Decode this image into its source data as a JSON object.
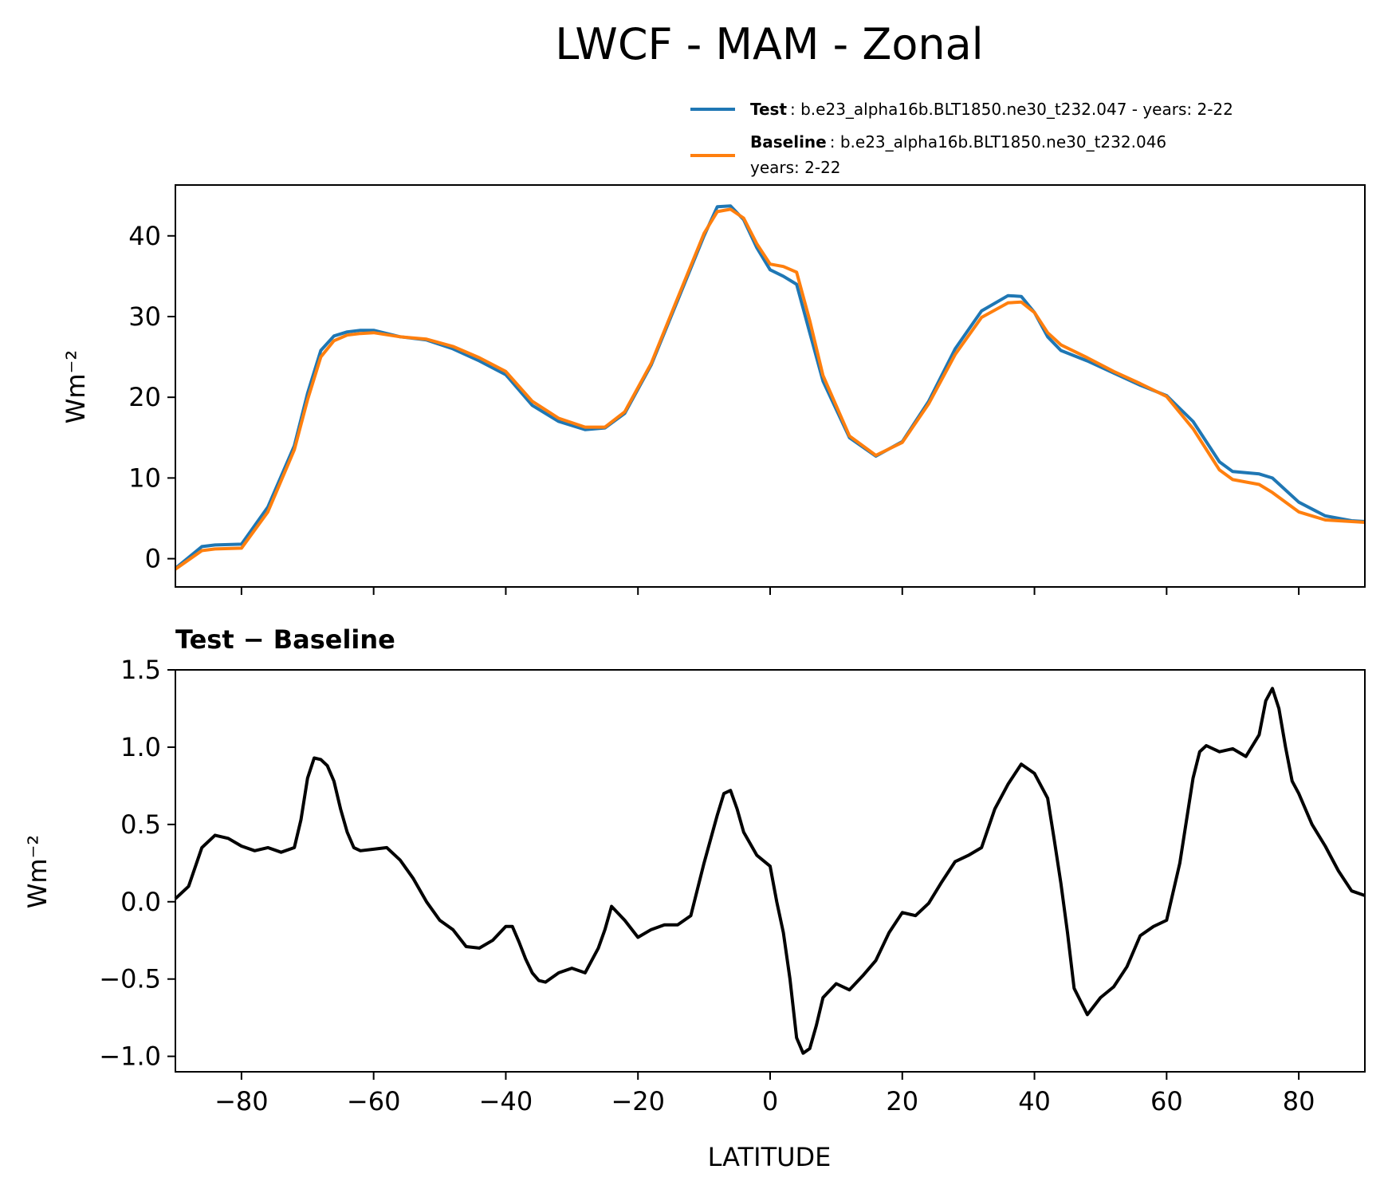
{
  "chart_data": [
    {
      "type": "line",
      "title": "LWCF - MAM - Zonal",
      "ylabel": "Wm⁻²",
      "xlabel": "",
      "xlim": [
        -90,
        90
      ],
      "ylim": [
        -3.5,
        46.3
      ],
      "yticks": [
        0,
        10,
        20,
        30,
        40
      ],
      "xticks": [
        -80,
        -60,
        -40,
        -20,
        0,
        20,
        40,
        60,
        80
      ],
      "legend": {
        "placement": "top-right",
        "entries": [
          {
            "name": "Test",
            "desc": ": b.e23_alpha16b.BLT1850.ne30_t232.047 - years: 2-22",
            "color": "#1f77b4"
          },
          {
            "name": "Baseline",
            "desc": ": b.e23_alpha16b.BLT1850.ne30_t232.046",
            "desc2": "years: 2-22",
            "color": "#ff7f0e"
          }
        ]
      },
      "series": [
        {
          "name": "Test",
          "color": "#1f77b4",
          "x": [
            -90,
            -86,
            -84,
            -80,
            -76,
            -72,
            -70,
            -68,
            -66,
            -64,
            -62,
            -60,
            -56,
            -52,
            -48,
            -44,
            -40,
            -36,
            -32,
            -28,
            -25,
            -22,
            -18,
            -14,
            -10,
            -8,
            -6,
            -4,
            -2,
            0,
            2,
            4,
            6,
            8,
            12,
            16,
            20,
            24,
            28,
            32,
            36,
            38,
            40,
            42,
            44,
            48,
            52,
            56,
            60,
            64,
            68,
            70,
            74,
            76,
            80,
            84,
            88,
            90
          ],
          "values": [
            -1.2,
            1.5,
            1.7,
            1.8,
            6.4,
            14.0,
            20.5,
            25.8,
            27.6,
            28.1,
            28.3,
            28.3,
            27.5,
            27.1,
            26.0,
            24.5,
            22.8,
            19.0,
            17.0,
            16.0,
            16.2,
            18.0,
            24.0,
            32.0,
            40.0,
            43.6,
            43.7,
            42.0,
            38.5,
            35.8,
            35.0,
            34.0,
            28.0,
            22.0,
            15.0,
            12.7,
            14.5,
            19.5,
            26.0,
            30.7,
            32.6,
            32.5,
            30.5,
            27.5,
            25.8,
            24.5,
            23.0,
            21.5,
            20.2,
            17.0,
            12.0,
            10.8,
            10.5,
            10.0,
            7.0,
            5.3,
            4.7,
            4.6
          ]
        },
        {
          "name": "Baseline",
          "color": "#ff7f0e",
          "x": [
            -90,
            -86,
            -84,
            -80,
            -76,
            -72,
            -70,
            -68,
            -66,
            -64,
            -62,
            -60,
            -56,
            -52,
            -48,
            -44,
            -40,
            -36,
            -32,
            -28,
            -25,
            -22,
            -18,
            -14,
            -10,
            -8,
            -6,
            -4,
            -2,
            0,
            2,
            4,
            6,
            8,
            12,
            16,
            20,
            24,
            28,
            32,
            36,
            38,
            40,
            42,
            44,
            48,
            52,
            56,
            60,
            64,
            68,
            70,
            74,
            76,
            80,
            84,
            88,
            90
          ],
          "values": [
            -1.3,
            1.0,
            1.2,
            1.3,
            5.8,
            13.5,
            19.7,
            25.0,
            27.0,
            27.7,
            27.9,
            28.0,
            27.5,
            27.2,
            26.3,
            24.9,
            23.2,
            19.5,
            17.4,
            16.3,
            16.3,
            18.2,
            24.2,
            32.3,
            40.3,
            43.0,
            43.3,
            42.2,
            39.0,
            36.5,
            36.2,
            35.5,
            29.5,
            22.7,
            15.2,
            12.8,
            14.4,
            19.2,
            25.3,
            29.9,
            31.7,
            31.8,
            30.5,
            28.0,
            26.5,
            24.9,
            23.2,
            21.7,
            20.1,
            16.1,
            11.0,
            9.8,
            9.2,
            8.2,
            5.8,
            4.8,
            4.6,
            4.5
          ]
        }
      ]
    },
    {
      "type": "line",
      "title": "Test − Baseline",
      "xlabel": "LATITUDE",
      "ylabel": "Wm⁻²",
      "xlim": [
        -90,
        90
      ],
      "ylim": [
        -1.1,
        1.5
      ],
      "yticks": [
        -1.0,
        -0.5,
        0.0,
        0.5,
        1.0,
        1.5
      ],
      "ytick_labels": [
        "−1.0",
        "−0.5",
        "0.0",
        "0.5",
        "1.0",
        "1.5"
      ],
      "xticks": [
        -80,
        -60,
        -40,
        -20,
        0,
        20,
        40,
        60,
        80
      ],
      "xtick_labels": [
        "−80",
        "−60",
        "−40",
        "−20",
        "0",
        "20",
        "40",
        "60",
        "80"
      ],
      "series": [
        {
          "name": "Test - Baseline",
          "color": "#000000",
          "x": [
            -90,
            -88,
            -86,
            -84,
            -82,
            -80,
            -78,
            -76,
            -74,
            -72,
            -71,
            -70,
            -69,
            -68,
            -67,
            -66,
            -65,
            -64,
            -63,
            -62,
            -60,
            -58,
            -56,
            -54,
            -52,
            -50,
            -48,
            -46,
            -44,
            -42,
            -40,
            -39,
            -38,
            -37,
            -36,
            -35,
            -34,
            -32,
            -30,
            -28,
            -26,
            -25,
            -24,
            -22,
            -20,
            -18,
            -16,
            -14,
            -12,
            -10,
            -8,
            -7,
            -6,
            -5,
            -4,
            -2,
            0,
            1,
            2,
            3,
            4,
            5,
            6,
            7,
            8,
            10,
            12,
            14,
            16,
            18,
            20,
            22,
            24,
            26,
            28,
            30,
            32,
            34,
            36,
            38,
            40,
            42,
            43,
            44,
            45,
            46,
            48,
            50,
            52,
            54,
            56,
            58,
            60,
            62,
            64,
            65,
            66,
            68,
            70,
            72,
            74,
            75,
            76,
            77,
            78,
            79,
            80,
            82,
            84,
            86,
            88,
            90
          ],
          "values": [
            0.02,
            0.1,
            0.35,
            0.43,
            0.41,
            0.36,
            0.33,
            0.35,
            0.32,
            0.35,
            0.53,
            0.8,
            0.93,
            0.92,
            0.88,
            0.78,
            0.6,
            0.45,
            0.35,
            0.33,
            0.34,
            0.35,
            0.27,
            0.15,
            0.0,
            -0.12,
            -0.18,
            -0.29,
            -0.3,
            -0.25,
            -0.16,
            -0.16,
            -0.26,
            -0.37,
            -0.46,
            -0.51,
            -0.52,
            -0.46,
            -0.43,
            -0.46,
            -0.3,
            -0.18,
            -0.03,
            -0.12,
            -0.23,
            -0.18,
            -0.15,
            -0.15,
            -0.09,
            0.25,
            0.56,
            0.7,
            0.72,
            0.6,
            0.45,
            0.3,
            0.23,
            0.0,
            -0.2,
            -0.5,
            -0.88,
            -0.98,
            -0.95,
            -0.8,
            -0.62,
            -0.53,
            -0.57,
            -0.48,
            -0.38,
            -0.2,
            -0.07,
            -0.09,
            -0.01,
            0.13,
            0.26,
            0.3,
            0.35,
            0.6,
            0.76,
            0.89,
            0.83,
            0.67,
            0.4,
            0.12,
            -0.2,
            -0.56,
            -0.73,
            -0.62,
            -0.55,
            -0.42,
            -0.22,
            -0.16,
            -0.12,
            0.25,
            0.8,
            0.97,
            1.01,
            0.97,
            0.99,
            0.94,
            1.08,
            1.3,
            1.38,
            1.25,
            1.0,
            0.78,
            0.7,
            0.5,
            0.36,
            0.2,
            0.07,
            0.04
          ]
        }
      ]
    }
  ]
}
